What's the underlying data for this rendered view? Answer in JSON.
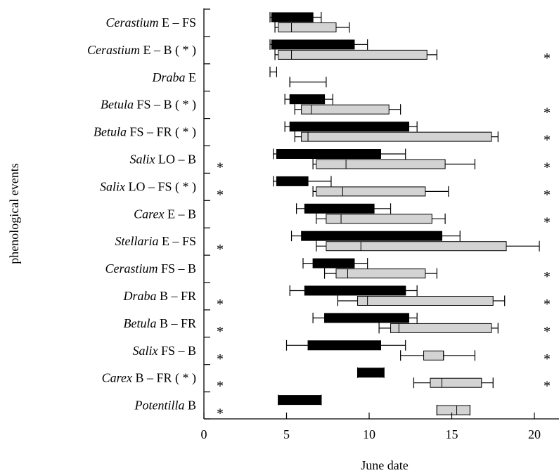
{
  "chart_data": {
    "type": "box-range",
    "xlabel": "June date",
    "ylabel": "phenological events",
    "xlim": [
      0,
      21.5
    ],
    "xticks": [
      0,
      5,
      10,
      15,
      20
    ],
    "grid": false,
    "legend": "none",
    "colors": {
      "first_series": "#000000",
      "second_series": "#d3d3d3",
      "outline": "#000000"
    },
    "star_symbol": "*",
    "rows": [
      {
        "genus": "Cerastium",
        "event": "E – FS",
        "asterisk": "",
        "left_star": false,
        "right_star": false,
        "first": {
          "lo": 4.0,
          "q1": 4.1,
          "q3": 6.6,
          "hi": 7.1,
          "median": 6.6
        },
        "second": {
          "lo": 4.3,
          "q1": 4.5,
          "q3": 8.0,
          "hi": 8.8,
          "median": 5.3
        }
      },
      {
        "genus": "Cerastium",
        "event": "E – B",
        "asterisk": "( * )",
        "left_star": false,
        "right_star": true,
        "first": {
          "lo": 4.0,
          "q1": 4.1,
          "q3": 9.1,
          "hi": 9.9,
          "median": 9.1
        },
        "second": {
          "lo": 4.3,
          "q1": 4.5,
          "q3": 13.5,
          "hi": 14.1,
          "median": 5.3
        }
      },
      {
        "genus": "Draba",
        "event": "E",
        "asterisk": "",
        "left_star": false,
        "right_star": false,
        "first": {
          "lo": 4.0,
          "q1": 4.0,
          "q3": 4.0,
          "hi": 4.4,
          "median": 4.0
        },
        "second": {
          "lo": 5.2,
          "q1": 5.2,
          "q3": 5.2,
          "hi": 7.4,
          "median": 5.2
        }
      },
      {
        "genus": "Betula",
        "event": "FS – B",
        "asterisk": "( * )",
        "left_star": false,
        "right_star": true,
        "first": {
          "lo": 4.9,
          "q1": 5.2,
          "q3": 7.3,
          "hi": 7.8,
          "median": 7.3
        },
        "second": {
          "lo": 5.5,
          "q1": 5.9,
          "q3": 11.2,
          "hi": 11.9,
          "median": 6.5
        }
      },
      {
        "genus": "Betula",
        "event": "FS – FR",
        "asterisk": "( * )",
        "left_star": false,
        "right_star": true,
        "first": {
          "lo": 4.9,
          "q1": 5.2,
          "q3": 12.4,
          "hi": 12.9,
          "median": 12.4
        },
        "second": {
          "lo": 5.5,
          "q1": 5.9,
          "q3": 17.4,
          "hi": 17.8,
          "median": 6.3
        }
      },
      {
        "genus": "Salix",
        "event": "LO – B",
        "asterisk": "",
        "left_star": true,
        "right_star": true,
        "first": {
          "lo": 4.2,
          "q1": 4.4,
          "q3": 10.7,
          "hi": 12.2,
          "median": 10.7
        },
        "second": {
          "lo": 6.6,
          "q1": 6.8,
          "q3": 14.6,
          "hi": 16.4,
          "median": 8.6
        }
      },
      {
        "genus": "Salix",
        "event": "LO – FS",
        "asterisk": "( * )",
        "left_star": true,
        "right_star": true,
        "first": {
          "lo": 4.2,
          "q1": 4.4,
          "q3": 6.3,
          "hi": 7.7,
          "median": 6.3
        },
        "second": {
          "lo": 6.6,
          "q1": 6.8,
          "q3": 13.4,
          "hi": 14.8,
          "median": 8.4
        }
      },
      {
        "genus": "Carex",
        "event": "E – B",
        "asterisk": "",
        "left_star": false,
        "right_star": true,
        "first": {
          "lo": 5.6,
          "q1": 6.1,
          "q3": 10.3,
          "hi": 11.3,
          "median": 10.3
        },
        "second": {
          "lo": 6.8,
          "q1": 7.4,
          "q3": 13.8,
          "hi": 14.6,
          "median": 8.3
        }
      },
      {
        "genus": "Stellaria",
        "event": "E – FS",
        "asterisk": "",
        "left_star": true,
        "right_star": false,
        "first": {
          "lo": 5.3,
          "q1": 5.9,
          "q3": 14.4,
          "hi": 15.5,
          "median": 14.4
        },
        "second": {
          "lo": 6.8,
          "q1": 7.4,
          "q3": 18.3,
          "hi": 20.3,
          "median": 9.5
        }
      },
      {
        "genus": "Cerastium",
        "event": "FS – B",
        "asterisk": "",
        "left_star": false,
        "right_star": true,
        "first": {
          "lo": 6.0,
          "q1": 6.6,
          "q3": 9.1,
          "hi": 9.9,
          "median": 9.1
        },
        "second": {
          "lo": 7.3,
          "q1": 8.0,
          "q3": 13.4,
          "hi": 14.1,
          "median": 8.7
        }
      },
      {
        "genus": "Draba",
        "event": "B – FR",
        "asterisk": "",
        "left_star": true,
        "right_star": true,
        "first": {
          "lo": 5.2,
          "q1": 6.1,
          "q3": 12.2,
          "hi": 12.9,
          "median": 12.2
        },
        "second": {
          "lo": 8.1,
          "q1": 9.3,
          "q3": 17.5,
          "hi": 18.2,
          "median": 9.9
        }
      },
      {
        "genus": "Betula",
        "event": "B – FR",
        "asterisk": "",
        "left_star": true,
        "right_star": true,
        "first": {
          "lo": 6.6,
          "q1": 7.3,
          "q3": 12.4,
          "hi": 12.9,
          "median": 12.4
        },
        "second": {
          "lo": 10.6,
          "q1": 11.3,
          "q3": 17.4,
          "hi": 17.8,
          "median": 11.8
        }
      },
      {
        "genus": "Salix",
        "event": "FS – B",
        "asterisk": "",
        "left_star": true,
        "right_star": true,
        "first": {
          "lo": 5.0,
          "q1": 6.3,
          "q3": 10.7,
          "hi": 12.2,
          "median": 10.7
        },
        "second": {
          "lo": 11.9,
          "q1": 13.3,
          "q3": 14.5,
          "hi": 16.4,
          "median": 14.5
        }
      },
      {
        "genus": "Carex",
        "event": "B – FR",
        "asterisk": "( * )",
        "left_star": true,
        "right_star": true,
        "first": {
          "lo": 9.3,
          "q1": 9.3,
          "q3": 10.9,
          "hi": 10.9,
          "median": 10.3
        },
        "second": {
          "lo": 12.7,
          "q1": 13.7,
          "q3": 16.8,
          "hi": 17.5,
          "median": 14.4
        }
      },
      {
        "genus": "Potentilla",
        "event": "B",
        "asterisk": "",
        "left_star": true,
        "right_star": false,
        "first": {
          "lo": 4.5,
          "q1": 4.5,
          "q3": 7.1,
          "hi": 7.1,
          "median": 6.5
        },
        "second": {
          "lo": 14.1,
          "q1": 14.1,
          "q3": 16.1,
          "hi": 16.1,
          "median": 15.3
        }
      }
    ]
  }
}
